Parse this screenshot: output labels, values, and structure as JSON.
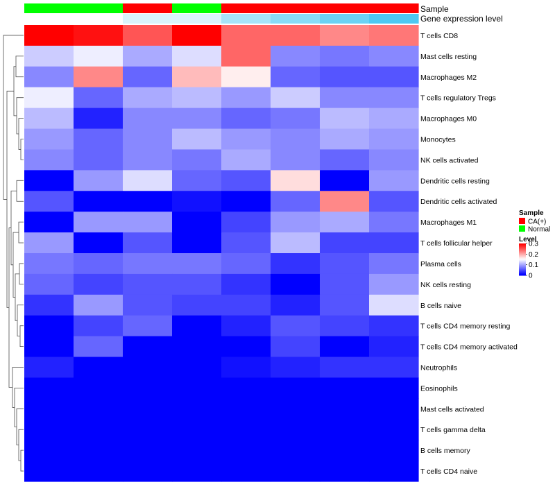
{
  "chart_data": {
    "type": "heatmap",
    "title": "",
    "annotations": {
      "sample_title": "Sample",
      "sample_values": [
        "Normal",
        "Normal",
        "CA(+)",
        "Normal",
        "CA(+)",
        "CA(+)",
        "CA(+)",
        "CA(+)"
      ],
      "expression_title": "Gene expression level",
      "expression_values": [
        0.0,
        0.0,
        0.05,
        0.05,
        0.12,
        0.16,
        0.2,
        0.24
      ]
    },
    "rows": [
      "T cells CD8",
      "Mast cells resting",
      "Macrophages M2",
      "T cells regulatory  Tregs",
      "Macrophages M0",
      "Monocytes",
      "NK cells activated",
      "Dendritic cells resting",
      "Dendritic cells activated",
      "Macrophages M1",
      "T cells follicular helper",
      "Plasma cells",
      "NK cells resting",
      "B cells naive",
      "T cells CD4 memory resting",
      "T cells CD4 memory activated",
      "Neutrophils",
      "Eosinophils",
      "Mast cells activated",
      "T cells gamma delta",
      "B cells memory",
      "T cells CD4 naive"
    ],
    "values": [
      [
        0.3,
        0.29,
        0.25,
        0.3,
        0.24,
        0.24,
        0.22,
        0.23
      ],
      [
        0.12,
        0.14,
        0.1,
        0.13,
        0.24,
        0.08,
        0.07,
        0.08
      ],
      [
        0.08,
        0.22,
        0.06,
        0.19,
        0.16,
        0.06,
        0.05,
        0.05
      ],
      [
        0.14,
        0.06,
        0.1,
        0.11,
        0.09,
        0.12,
        0.08,
        0.08
      ],
      [
        0.11,
        0.02,
        0.08,
        0.08,
        0.06,
        0.07,
        0.11,
        0.1
      ],
      [
        0.09,
        0.06,
        0.08,
        0.11,
        0.09,
        0.08,
        0.1,
        0.09
      ],
      [
        0.08,
        0.06,
        0.08,
        0.07,
        0.1,
        0.08,
        0.06,
        0.08
      ],
      [
        0.0,
        0.09,
        0.13,
        0.06,
        0.05,
        0.17,
        0.0,
        0.09
      ],
      [
        0.05,
        0.0,
        0.0,
        0.01,
        0.0,
        0.06,
        0.22,
        0.05
      ],
      [
        0.0,
        0.09,
        0.09,
        0.0,
        0.04,
        0.09,
        0.1,
        0.07
      ],
      [
        0.09,
        0.0,
        0.05,
        0.0,
        0.05,
        0.11,
        0.04,
        0.04
      ],
      [
        0.07,
        0.06,
        0.07,
        0.07,
        0.06,
        0.03,
        0.05,
        0.07
      ],
      [
        0.06,
        0.04,
        0.05,
        0.05,
        0.03,
        0.0,
        0.05,
        0.09
      ],
      [
        0.03,
        0.09,
        0.05,
        0.04,
        0.04,
        0.02,
        0.05,
        0.13
      ],
      [
        0.0,
        0.04,
        0.06,
        0.0,
        0.02,
        0.05,
        0.04,
        0.03
      ],
      [
        0.0,
        0.06,
        0.0,
        0.0,
        0.0,
        0.04,
        0.0,
        0.02
      ],
      [
        0.02,
        0.0,
        0.0,
        0.0,
        0.01,
        0.02,
        0.03,
        0.03
      ],
      [
        0.0,
        0.0,
        0.0,
        0.0,
        0.0,
        0.0,
        0.0,
        0.0
      ],
      [
        0.0,
        0.0,
        0.0,
        0.0,
        0.0,
        0.0,
        0.0,
        0.0
      ],
      [
        0.0,
        0.0,
        0.0,
        0.0,
        0.0,
        0.0,
        0.0,
        0.0
      ],
      [
        0.0,
        0.0,
        0.0,
        0.0,
        0.0,
        0.0,
        0.0,
        0.0
      ],
      [
        0.0,
        0.0,
        0.0,
        0.0,
        0.0,
        0.0,
        0.0,
        0.0
      ]
    ],
    "color_scale": {
      "min": 0,
      "mid": 0.15,
      "max": 0.3,
      "low_color": "#0000ff",
      "mid_color": "#ffffff",
      "high_color": "#ff0000"
    },
    "legend": {
      "placement": "right",
      "sample": {
        "title": "Sample",
        "entries": [
          {
            "label": "CA(+)",
            "color": "#ff0000"
          },
          {
            "label": "Normal",
            "color": "#00ff00"
          }
        ]
      },
      "level": {
        "title": "Level",
        "ticks": [
          "0.3",
          "0.2",
          "0.1",
          "0"
        ],
        "tick_values": [
          0.3,
          0.2,
          0.1,
          0
        ]
      }
    },
    "expression_colors": {
      "low": "#ffffff",
      "high": "#4ec9f2"
    },
    "row_dendrogram": true
  }
}
